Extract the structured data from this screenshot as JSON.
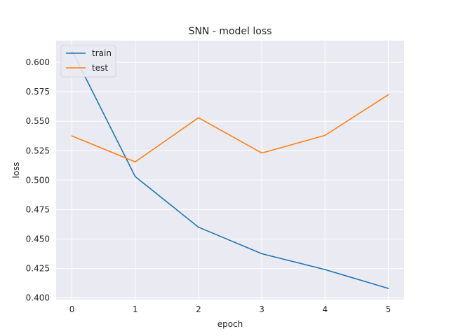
{
  "chart_data": {
    "type": "line",
    "title": "SNN - model loss",
    "xlabel": "epoch",
    "ylabel": "loss",
    "x": [
      0,
      1,
      2,
      3,
      4,
      5
    ],
    "xlim": [
      -0.25,
      5.25
    ],
    "ylim": [
      0.3985,
      0.6185
    ],
    "xticks": [
      "0",
      "1",
      "2",
      "3",
      "4",
      "5"
    ],
    "yticks": [
      "0.400",
      "0.425",
      "0.450",
      "0.475",
      "0.500",
      "0.525",
      "0.550",
      "0.575",
      "0.600"
    ],
    "grid": true,
    "legend_position": "top-left",
    "series": [
      {
        "name": "train",
        "color": "#1f77b4",
        "values": [
          0.61,
          0.503,
          0.46,
          0.4375,
          0.424,
          0.408
        ]
      },
      {
        "name": "test",
        "color": "#ff7f0e",
        "values": [
          0.5375,
          0.5155,
          0.553,
          0.523,
          0.538,
          0.5725
        ]
      }
    ]
  }
}
